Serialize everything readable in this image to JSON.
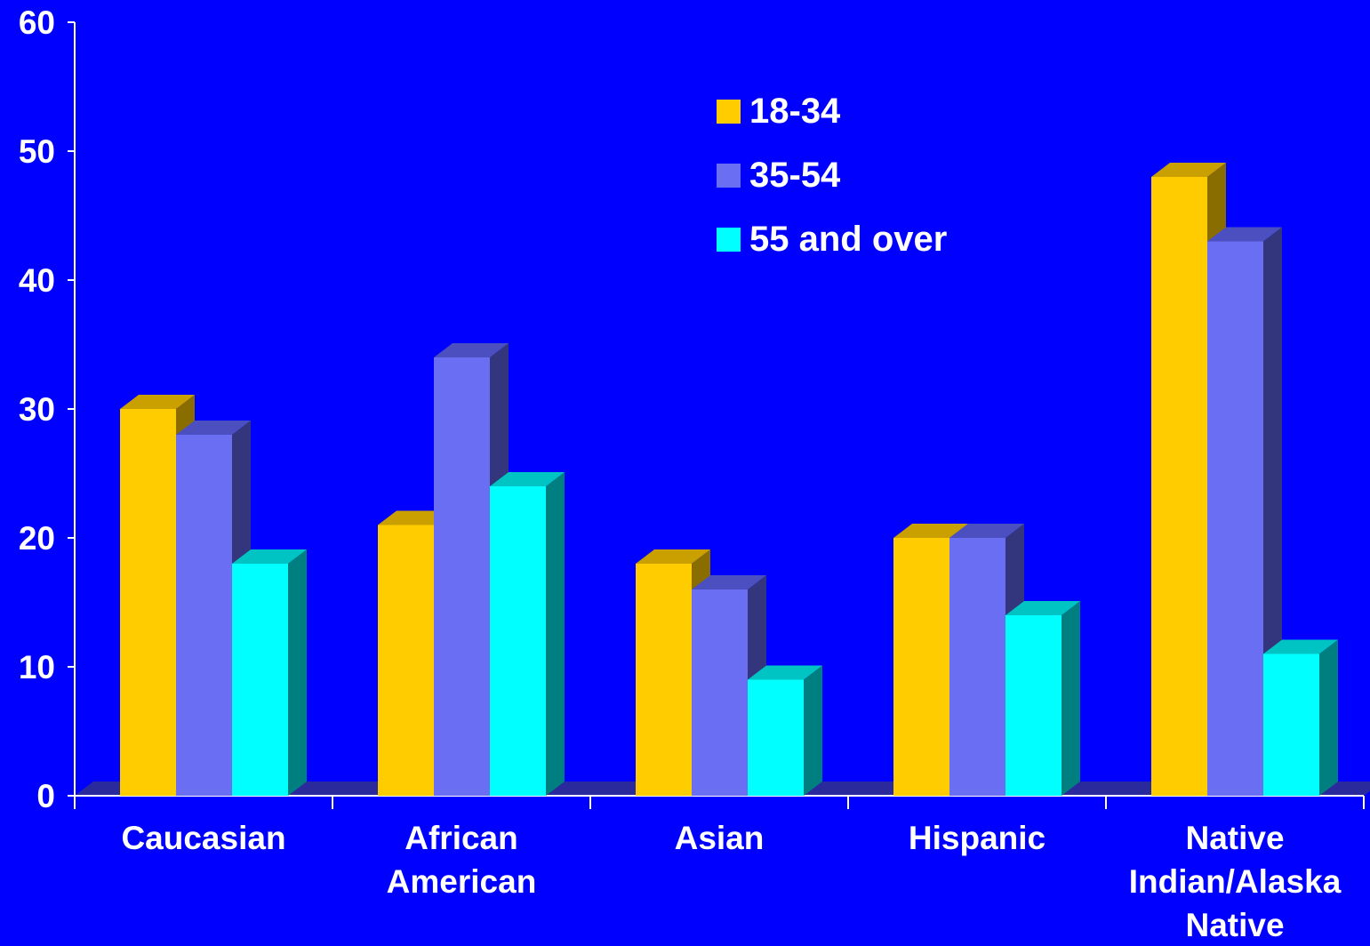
{
  "chart_data": {
    "type": "bar",
    "title": "",
    "xlabel": "",
    "ylabel": "",
    "ylim": [
      0,
      60
    ],
    "yticks": [
      "0",
      "10",
      "20",
      "30",
      "40",
      "50",
      "60"
    ],
    "categories": [
      [
        "Caucasian"
      ],
      [
        "African",
        "American"
      ],
      [
        "Asian"
      ],
      [
        "Hispanic"
      ],
      [
        "Native",
        "Indian/Alaska",
        "Native"
      ]
    ],
    "series": [
      {
        "name": "18-34",
        "values": [
          30,
          21,
          18,
          20,
          48
        ],
        "color": "#ffcc00",
        "side": "#8a6d00",
        "top": "#c9a000"
      },
      {
        "name": "35-54",
        "values": [
          28,
          34,
          16,
          20,
          43
        ],
        "color": "#6a6ef2",
        "side": "#33367c",
        "top": "#4b4fc0"
      },
      {
        "name": "55 and over",
        "values": [
          18,
          24,
          9,
          14,
          11
        ],
        "color": "#00ffff",
        "side": "#007f80",
        "top": "#00c4c4"
      }
    ],
    "legend_position": "top-center",
    "background": "#0000ff",
    "floor_color": "#2a2a9c"
  }
}
